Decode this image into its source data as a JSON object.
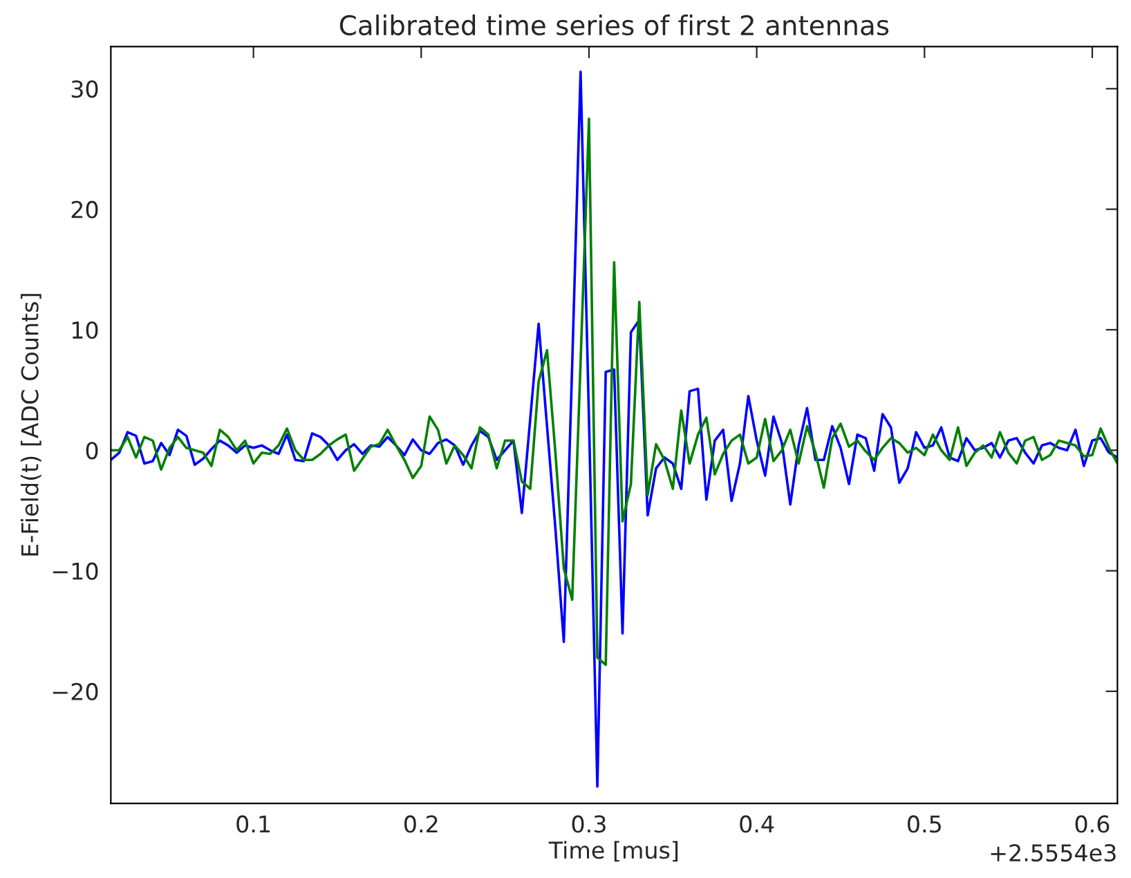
{
  "chart_data": {
    "type": "line",
    "title": "Calibrated time series of first 2 antennas",
    "xlabel": "Time [mus]",
    "ylabel": "E-Field(t) [ADC Counts]",
    "annotations": [
      "+2.5554e3"
    ],
    "x": [
      0.015,
      0.02,
      0.025,
      0.03,
      0.035,
      0.04,
      0.045,
      0.05,
      0.055,
      0.06,
      0.065,
      0.07,
      0.075,
      0.08,
      0.085,
      0.09,
      0.095,
      0.1,
      0.105,
      0.11,
      0.115,
      0.12,
      0.125,
      0.13,
      0.135,
      0.14,
      0.145,
      0.15,
      0.155,
      0.16,
      0.165,
      0.17,
      0.175,
      0.18,
      0.185,
      0.19,
      0.195,
      0.2,
      0.205,
      0.21,
      0.215,
      0.22,
      0.225,
      0.23,
      0.235,
      0.24,
      0.245,
      0.25,
      0.255,
      0.26,
      0.265,
      0.27,
      0.275,
      0.28,
      0.285,
      0.29,
      0.295,
      0.3,
      0.305,
      0.31,
      0.315,
      0.32,
      0.325,
      0.33,
      0.335,
      0.34,
      0.345,
      0.35,
      0.355,
      0.36,
      0.365,
      0.37,
      0.375,
      0.38,
      0.385,
      0.39,
      0.395,
      0.4,
      0.405,
      0.41,
      0.415,
      0.42,
      0.425,
      0.43,
      0.435,
      0.44,
      0.445,
      0.45,
      0.455,
      0.46,
      0.465,
      0.47,
      0.475,
      0.48,
      0.485,
      0.49,
      0.495,
      0.5,
      0.505,
      0.51,
      0.515,
      0.52,
      0.525,
      0.53,
      0.535,
      0.54,
      0.545,
      0.55,
      0.555,
      0.56,
      0.565,
      0.57,
      0.575,
      0.58,
      0.585,
      0.59,
      0.595,
      0.6,
      0.605,
      0.61,
      0.615
    ],
    "series": [
      {
        "color": "#0000ff",
        "values": [
          -0.8,
          -0.2,
          1.5,
          1.2,
          -1.1,
          -0.9,
          0.6,
          -0.4,
          1.7,
          1.2,
          -1.2,
          -0.7,
          0.1,
          0.8,
          0.4,
          -0.2,
          0.4,
          0.2,
          0.4,
          0,
          -0.3,
          1.3,
          -0.8,
          -0.9,
          1.4,
          1.1,
          0.4,
          -0.8,
          0,
          0.5,
          -0.3,
          0.4,
          0.3,
          1.1,
          0.4,
          -0.4,
          0.9,
          0,
          -0.3,
          0.6,
          0.9,
          0.4,
          -1.2,
          0.4,
          1.6,
          1.1,
          -0.8,
          0,
          0.8,
          -5.2,
          2.6,
          10.5,
          2.0,
          -6.5,
          -15.9,
          7.1,
          31.4,
          2.6,
          -27.9,
          6.5,
          6.7,
          -15.2,
          9.8,
          10.8,
          -5.4,
          -1.5,
          -0.6,
          -1.1,
          -3.2,
          4.9,
          5.1,
          -4.1,
          0.8,
          1.7,
          -4.2,
          -1.1,
          4.5,
          0.8,
          -2.1,
          2.8,
          0.6,
          -4.5,
          0.4,
          3.5,
          -0.8,
          -0.8,
          2.0,
          0.2,
          -2.8,
          1.3,
          1.0,
          -1.7,
          3.0,
          1.9,
          -2.7,
          -1.5,
          1.5,
          0.2,
          0.4,
          1.9,
          -0.6,
          -0.9,
          1.0,
          0,
          0.2,
          0.6,
          -0.6,
          0.8,
          1.0,
          -0.2,
          -1.1,
          0.4,
          0.6,
          0.2,
          0,
          1.7,
          -1.3,
          0.8,
          1.0,
          -0.2,
          -0.6
        ]
      },
      {
        "color": "#008000",
        "values": [
          0,
          0,
          1.1,
          -0.6,
          1.1,
          0.8,
          -1.6,
          0.2,
          1.1,
          0.2,
          0,
          -0.2,
          -1.3,
          1.7,
          1.1,
          0,
          0.8,
          -1.1,
          -0.2,
          -0.3,
          0.4,
          1.8,
          0,
          -0.8,
          -0.8,
          -0.3,
          0.4,
          0.9,
          1.3,
          -1.7,
          -0.7,
          0.3,
          0.5,
          1.7,
          0.4,
          -0.8,
          -2.3,
          -1.3,
          2.8,
          1.7,
          -1.1,
          0.4,
          -0.4,
          -1.5,
          1.9,
          1.3,
          -1.5,
          0.8,
          0.8,
          -2.6,
          -3.2,
          5.7,
          8.3,
          -0.2,
          -9.8,
          -12.4,
          7.3,
          27.5,
          -17.2,
          -17.8,
          15.6,
          -5.9,
          -2.8,
          12.3,
          -3.7,
          0.5,
          -0.8,
          -3.2,
          3.3,
          -1.1,
          1.3,
          2.7,
          -2.0,
          -0.3,
          0.8,
          1.3,
          -1.1,
          -0.6,
          2.6,
          -0.9,
          0,
          1.7,
          -1.1,
          2.0,
          -0.2,
          -3.1,
          1.0,
          2.2,
          0.3,
          0.8,
          -0.1,
          -0.8,
          0.2,
          1.0,
          0.6,
          -0.2,
          0.2,
          -0.4,
          1.3,
          0,
          -0.8,
          1.9,
          -1.3,
          -0.2,
          0.4,
          -0.6,
          1.5,
          -0.2,
          -1.1,
          0.8,
          1.1,
          -0.8,
          -0.4,
          0.8,
          0.6,
          0.4,
          -0.5,
          -0.4,
          1.8,
          0.2,
          -1.1
        ]
      }
    ],
    "xlim": [
      0.015,
      0.615
    ],
    "xticks": [
      0.1,
      0.2,
      0.3,
      0.4,
      0.5,
      0.6
    ],
    "ylim": [
      -29.3,
      33.5
    ],
    "yticks": [
      {
        "value": -20,
        "label": "−20"
      },
      {
        "value": -10,
        "label": "−10"
      },
      0,
      10,
      20,
      30
    ],
    "grid": false,
    "legend": false,
    "marker": "none",
    "line_style": "solid"
  }
}
